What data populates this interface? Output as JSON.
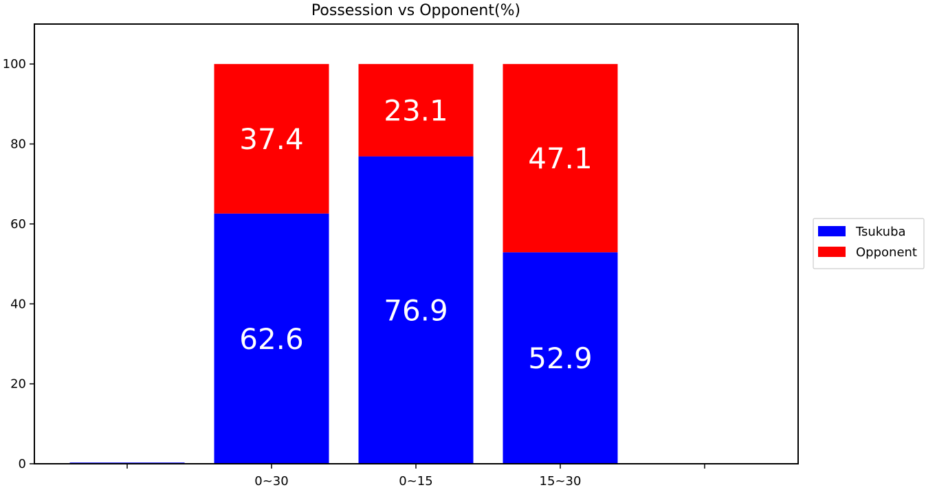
{
  "chart_data": {
    "type": "bar",
    "stacked": true,
    "title": "Possession vs Opponent(%)",
    "xlabel": "",
    "ylabel": "",
    "categories": [
      "",
      "0~30",
      "0~15",
      "15~30",
      ""
    ],
    "series": [
      {
        "name": "Tsukuba",
        "color": "#0000ff",
        "values": [
          0.3,
          62.6,
          76.9,
          52.9,
          0
        ]
      },
      {
        "name": "Opponent",
        "color": "#ff0000",
        "values": [
          0,
          37.4,
          23.1,
          47.1,
          0
        ]
      }
    ],
    "data_labels": [
      {
        "category": "0~30",
        "series": "Tsukuba",
        "text": "62.6"
      },
      {
        "category": "0~30",
        "series": "Opponent",
        "text": "37.4"
      },
      {
        "category": "0~15",
        "series": "Tsukuba",
        "text": "76.9"
      },
      {
        "category": "0~15",
        "series": "Opponent",
        "text": "23.1"
      },
      {
        "category": "15~30",
        "series": "Tsukuba",
        "text": "52.9"
      },
      {
        "category": "15~30",
        "series": "Opponent",
        "text": "47.1"
      }
    ],
    "yticks": [
      0,
      20,
      40,
      60,
      80,
      100
    ],
    "ylim": [
      0,
      110
    ],
    "grid": false,
    "legend_position": "right"
  }
}
